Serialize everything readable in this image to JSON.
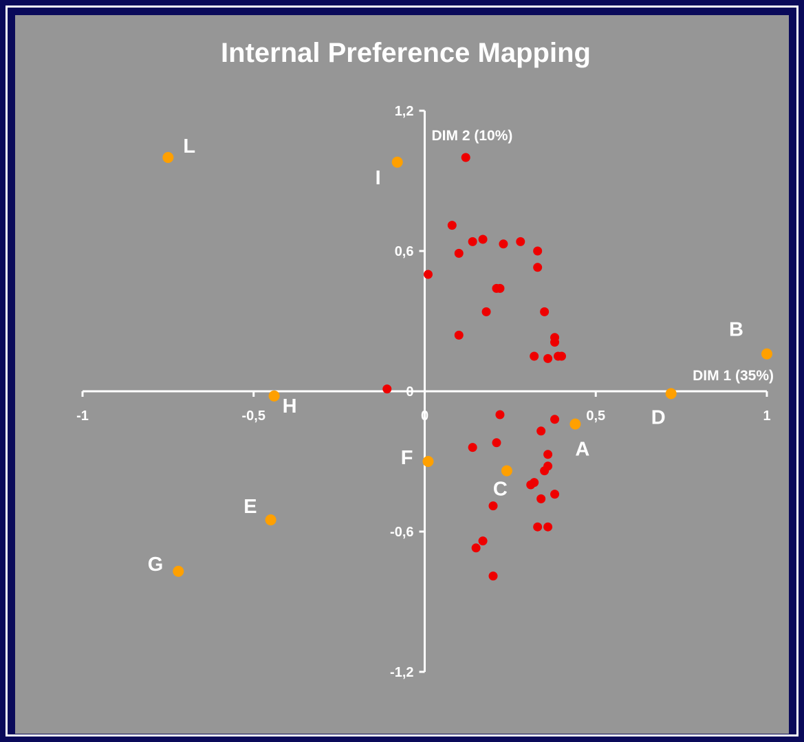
{
  "chart_data": {
    "type": "scatter",
    "title": "Internal Preference Mapping",
    "xlabel": "DIM 1 (35%)",
    "ylabel": "DIM 2 (10%)",
    "xlim": [
      -1,
      1
    ],
    "ylim": [
      -1.2,
      1.2
    ],
    "x_ticks": [
      "-1",
      "-0,5",
      "0",
      "0,5",
      "1"
    ],
    "x_tick_values": [
      -1,
      -0.5,
      0,
      0.5,
      1
    ],
    "y_ticks": [
      "1,2",
      "0,6",
      "0",
      "-0,6",
      "-1,2"
    ],
    "y_tick_values": [
      1.2,
      0.6,
      0,
      -0.6,
      -1.2
    ],
    "grid": false,
    "colors": {
      "products": "#ffa000",
      "consumers": "#ee0000",
      "background": "#969696",
      "frame": "#0a0a5a"
    },
    "products": [
      {
        "label": "L",
        "x": -0.75,
        "y": 1.0
      },
      {
        "label": "I",
        "x": -0.08,
        "y": 0.98
      },
      {
        "label": "B",
        "x": 1.0,
        "y": 0.16
      },
      {
        "label": "D",
        "x": 0.72,
        "y": -0.01
      },
      {
        "label": "H",
        "x": -0.44,
        "y": -0.02
      },
      {
        "label": "A",
        "x": 0.44,
        "y": -0.14
      },
      {
        "label": "F",
        "x": 0.01,
        "y": -0.3
      },
      {
        "label": "C",
        "x": 0.24,
        "y": -0.34
      },
      {
        "label": "E",
        "x": -0.45,
        "y": -0.55
      },
      {
        "label": "G",
        "x": -0.72,
        "y": -0.77
      }
    ],
    "consumers": [
      [
        0.12,
        1.0
      ],
      [
        0.08,
        0.71
      ],
      [
        0.14,
        0.64
      ],
      [
        0.17,
        0.65
      ],
      [
        0.23,
        0.63
      ],
      [
        0.28,
        0.64
      ],
      [
        0.33,
        0.6
      ],
      [
        0.1,
        0.59
      ],
      [
        0.33,
        0.53
      ],
      [
        0.01,
        0.5
      ],
      [
        0.21,
        0.44
      ],
      [
        0.22,
        0.44
      ],
      [
        0.18,
        0.34
      ],
      [
        0.35,
        0.34
      ],
      [
        0.1,
        0.24
      ],
      [
        0.38,
        0.23
      ],
      [
        0.38,
        0.21
      ],
      [
        0.32,
        0.15
      ],
      [
        0.36,
        0.14
      ],
      [
        0.39,
        0.15
      ],
      [
        0.4,
        0.15
      ],
      [
        -0.11,
        0.01
      ],
      [
        0.22,
        -0.1
      ],
      [
        0.38,
        -0.12
      ],
      [
        0.34,
        -0.17
      ],
      [
        0.21,
        -0.22
      ],
      [
        0.14,
        -0.24
      ],
      [
        0.36,
        -0.27
      ],
      [
        0.36,
        -0.32
      ],
      [
        0.35,
        -0.34
      ],
      [
        0.31,
        -0.4
      ],
      [
        0.32,
        -0.39
      ],
      [
        0.38,
        -0.44
      ],
      [
        0.34,
        -0.46
      ],
      [
        0.2,
        -0.49
      ],
      [
        0.33,
        -0.58
      ],
      [
        0.36,
        -0.58
      ],
      [
        0.17,
        -0.64
      ],
      [
        0.15,
        -0.67
      ],
      [
        0.2,
        -0.79
      ]
    ]
  }
}
